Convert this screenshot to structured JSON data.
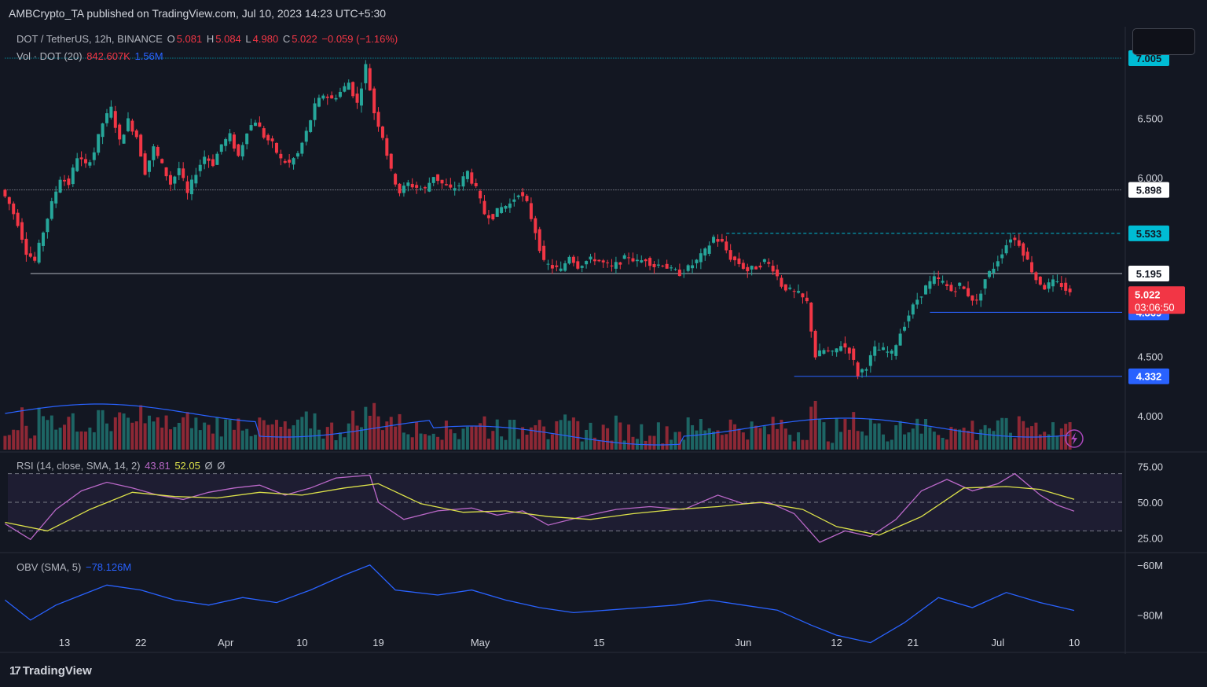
{
  "header": {
    "publisher_line": "AMBCrypto_TA published on TradingView.com, Jul 10, 2023 14:23 UTC+5:30"
  },
  "legend": {
    "symbol": "DOT / TetherUS, 12h, BINANCE",
    "o_label": "O",
    "o_value": "5.081",
    "h_label": "H",
    "h_value": "5.084",
    "l_label": "L",
    "l_value": "4.980",
    "c_label": "C",
    "c_value": "5.022",
    "change": "−0.059 (−1.16%)",
    "vol_label": "Vol · DOT (20)",
    "vol_value": "842.607K",
    "vol_ma": "1.56M",
    "rsi_label": "RSI (14, close, SMA, 14, 2)",
    "rsi_value": "43.81",
    "rsi_sma": "52.05",
    "rsi_extra1": "Ø",
    "rsi_extra2": "Ø",
    "obv_label": "OBV (SMA, 5)",
    "obv_value": "−78.126M"
  },
  "colors": {
    "bg": "#131722",
    "up": "#26a69a",
    "down": "#f23645",
    "vol_ma": "#2962ff",
    "rsi": "#ba68c8",
    "rsi_sma": "#dde24a",
    "obv": "#2962ff",
    "grid_text": "#d1d4dc"
  },
  "chart_data": {
    "type": "candlestick",
    "symbol": "DOT / TetherUS",
    "interval": "12h",
    "exchange": "BINANCE",
    "y_ticks": [
      "6.500",
      "6.000",
      "4.500",
      "4.000"
    ],
    "ylim": [
      3.8,
      7.1
    ],
    "x_ticks": [
      "13",
      "22",
      "Apr",
      "10",
      "19",
      "May",
      "15",
      "Jun",
      "12",
      "21",
      "Jul",
      "10"
    ],
    "x_tick_dates": [
      "2023-03-13",
      "2023-03-22",
      "2023-04-01",
      "2023-04-10",
      "2023-04-19",
      "2023-05-01",
      "2023-05-15",
      "2023-06-01",
      "2023-06-12",
      "2023-06-21",
      "2023-07-01",
      "2023-07-10"
    ],
    "price_labels": [
      {
        "text": "7.005",
        "value": 7.005,
        "color": "#00bcd4",
        "text_color": "#131722"
      },
      {
        "text": "5.898",
        "value": 5.898,
        "color": "#ffffff",
        "text_color": "#131722"
      },
      {
        "text": "5.533",
        "value": 5.533,
        "color": "#00bcd4",
        "text_color": "#131722"
      },
      {
        "text": "5.195",
        "value": 5.195,
        "color": "#ffffff",
        "text_color": "#131722"
      },
      {
        "text": "4.869",
        "value": 4.869,
        "color": "#2962ff",
        "text_color": "#ffffff"
      },
      {
        "text": "4.332",
        "value": 4.332,
        "color": "#2962ff",
        "text_color": "#ffffff"
      }
    ],
    "current_price": {
      "value": 5.022,
      "text": "5.022",
      "countdown": "03:06:50",
      "color": "#f23645"
    },
    "horizontal_lines": [
      {
        "value": 7.005,
        "style": "dotted",
        "color": "#00bcd4",
        "x_start_date": "2023-03-06"
      },
      {
        "value": 5.898,
        "style": "dotted",
        "color": "#b2b5be",
        "x_start_date": "2023-03-06"
      },
      {
        "value": 5.533,
        "style": "dashed",
        "color": "#00bcd4",
        "x_start_date": "2023-05-30"
      },
      {
        "value": 5.195,
        "style": "solid",
        "color": "#b2b5be",
        "x_start_date": "2023-03-09"
      },
      {
        "value": 4.869,
        "style": "solid",
        "color": "#2962ff",
        "x_start_date": "2023-06-23"
      },
      {
        "value": 4.332,
        "style": "solid",
        "color": "#2962ff",
        "x_start_date": "2023-06-07"
      }
    ],
    "price_path": [
      [
        "2023-03-06",
        5.9
      ],
      [
        "2023-03-07",
        5.78
      ],
      [
        "2023-03-08",
        5.62
      ],
      [
        "2023-03-09",
        5.38
      ],
      [
        "2023-03-10",
        5.3
      ],
      [
        "2023-03-11",
        5.55
      ],
      [
        "2023-03-12",
        5.78
      ],
      [
        "2023-03-13",
        6.0
      ],
      [
        "2023-03-14",
        5.95
      ],
      [
        "2023-03-15",
        6.18
      ],
      [
        "2023-03-16",
        6.1
      ],
      [
        "2023-03-17",
        6.22
      ],
      [
        "2023-03-18",
        6.46
      ],
      [
        "2023-03-19",
        6.58
      ],
      [
        "2023-03-20",
        6.3
      ],
      [
        "2023-03-21",
        6.48
      ],
      [
        "2023-03-22",
        6.35
      ],
      [
        "2023-03-23",
        6.05
      ],
      [
        "2023-03-24",
        6.25
      ],
      [
        "2023-03-25",
        6.1
      ],
      [
        "2023-03-26",
        5.95
      ],
      [
        "2023-03-27",
        6.08
      ],
      [
        "2023-03-28",
        5.86
      ],
      [
        "2023-03-29",
        6.05
      ],
      [
        "2023-03-30",
        6.18
      ],
      [
        "2023-03-31",
        6.12
      ],
      [
        "2023-04-01",
        6.28
      ],
      [
        "2023-04-02",
        6.35
      ],
      [
        "2023-04-03",
        6.18
      ],
      [
        "2023-04-04",
        6.4
      ],
      [
        "2023-04-05",
        6.48
      ],
      [
        "2023-04-06",
        6.35
      ],
      [
        "2023-04-07",
        6.28
      ],
      [
        "2023-04-08",
        6.15
      ],
      [
        "2023-04-09",
        6.12
      ],
      [
        "2023-04-10",
        6.2
      ],
      [
        "2023-04-11",
        6.38
      ],
      [
        "2023-04-12",
        6.6
      ],
      [
        "2023-04-13",
        6.7
      ],
      [
        "2023-04-14",
        6.66
      ],
      [
        "2023-04-15",
        6.72
      ],
      [
        "2023-04-16",
        6.8
      ],
      [
        "2023-04-17",
        6.62
      ],
      [
        "2023-04-18",
        6.94
      ],
      [
        "2023-04-19",
        6.55
      ],
      [
        "2023-04-20",
        6.35
      ],
      [
        "2023-04-21",
        6.05
      ],
      [
        "2023-04-22",
        5.88
      ],
      [
        "2023-04-23",
        5.95
      ],
      [
        "2023-04-24",
        5.92
      ],
      [
        "2023-04-25",
        5.9
      ],
      [
        "2023-04-26",
        6.02
      ],
      [
        "2023-04-27",
        5.95
      ],
      [
        "2023-04-28",
        5.9
      ],
      [
        "2023-04-29",
        5.94
      ],
      [
        "2023-04-30",
        6.05
      ],
      [
        "2023-05-01",
        5.9
      ],
      [
        "2023-05-02",
        5.7
      ],
      [
        "2023-05-03",
        5.68
      ],
      [
        "2023-05-04",
        5.75
      ],
      [
        "2023-05-05",
        5.78
      ],
      [
        "2023-05-06",
        5.88
      ],
      [
        "2023-05-07",
        5.78
      ],
      [
        "2023-05-08",
        5.55
      ],
      [
        "2023-05-09",
        5.28
      ],
      [
        "2023-05-10",
        5.25
      ],
      [
        "2023-05-11",
        5.22
      ],
      [
        "2023-05-12",
        5.35
      ],
      [
        "2023-05-13",
        5.26
      ],
      [
        "2023-05-14",
        5.3
      ],
      [
        "2023-05-15",
        5.32
      ],
      [
        "2023-05-16",
        5.28
      ],
      [
        "2023-05-17",
        5.24
      ],
      [
        "2023-05-18",
        5.3
      ],
      [
        "2023-05-19",
        5.34
      ],
      [
        "2023-05-20",
        5.29
      ],
      [
        "2023-05-21",
        5.32
      ],
      [
        "2023-05-22",
        5.26
      ],
      [
        "2023-05-23",
        5.28
      ],
      [
        "2023-05-24",
        5.22
      ],
      [
        "2023-05-25",
        5.2
      ],
      [
        "2023-05-26",
        5.24
      ],
      [
        "2023-05-27",
        5.3
      ],
      [
        "2023-05-28",
        5.38
      ],
      [
        "2023-05-29",
        5.5
      ],
      [
        "2023-05-30",
        5.45
      ],
      [
        "2023-05-31",
        5.33
      ],
      [
        "2023-06-01",
        5.28
      ],
      [
        "2023-06-02",
        5.22
      ],
      [
        "2023-06-03",
        5.25
      ],
      [
        "2023-06-04",
        5.3
      ],
      [
        "2023-06-05",
        5.24
      ],
      [
        "2023-06-06",
        5.1
      ],
      [
        "2023-06-07",
        5.05
      ],
      [
        "2023-06-08",
        5.02
      ],
      [
        "2023-06-09",
        4.95
      ],
      [
        "2023-06-10",
        4.5
      ],
      [
        "2023-06-11",
        4.55
      ],
      [
        "2023-06-12",
        4.52
      ],
      [
        "2023-06-13",
        4.6
      ],
      [
        "2023-06-14",
        4.55
      ],
      [
        "2023-06-15",
        4.35
      ],
      [
        "2023-06-16",
        4.42
      ],
      [
        "2023-06-17",
        4.56
      ],
      [
        "2023-06-18",
        4.55
      ],
      [
        "2023-06-19",
        4.52
      ],
      [
        "2023-06-20",
        4.7
      ],
      [
        "2023-06-21",
        4.85
      ],
      [
        "2023-06-22",
        4.98
      ],
      [
        "2023-06-23",
        5.08
      ],
      [
        "2023-06-24",
        5.15
      ],
      [
        "2023-06-25",
        5.12
      ],
      [
        "2023-06-26",
        5.05
      ],
      [
        "2023-06-27",
        5.1
      ],
      [
        "2023-06-28",
        5.02
      ],
      [
        "2023-06-29",
        4.95
      ],
      [
        "2023-06-30",
        5.15
      ],
      [
        "2023-07-01",
        5.25
      ],
      [
        "2023-07-02",
        5.38
      ],
      [
        "2023-07-03",
        5.5
      ],
      [
        "2023-07-04",
        5.45
      ],
      [
        "2023-07-05",
        5.3
      ],
      [
        "2023-07-06",
        5.15
      ],
      [
        "2023-07-07",
        5.08
      ],
      [
        "2023-07-08",
        5.12
      ],
      [
        "2023-07-09",
        5.1
      ],
      [
        "2023-07-10",
        5.022
      ]
    ],
    "rsi": {
      "ticks": [
        "75.00",
        "50.00",
        "25.00"
      ],
      "ylim": [
        17,
        83
      ],
      "bands": [
        70,
        50,
        30
      ],
      "points": [
        [
          "2023-03-06",
          35
        ],
        [
          "2023-03-09",
          24
        ],
        [
          "2023-03-12",
          45
        ],
        [
          "2023-03-15",
          58
        ],
        [
          "2023-03-18",
          64
        ],
        [
          "2023-03-21",
          60
        ],
        [
          "2023-03-24",
          55
        ],
        [
          "2023-03-27",
          52
        ],
        [
          "2023-03-30",
          57
        ],
        [
          "2023-04-02",
          60
        ],
        [
          "2023-04-05",
          62
        ],
        [
          "2023-04-08",
          55
        ],
        [
          "2023-04-11",
          60
        ],
        [
          "2023-04-14",
          67
        ],
        [
          "2023-04-18",
          69
        ],
        [
          "2023-04-19",
          50
        ],
        [
          "2023-04-22",
          38
        ],
        [
          "2023-04-26",
          44
        ],
        [
          "2023-04-30",
          46
        ],
        [
          "2023-05-03",
          41
        ],
        [
          "2023-05-06",
          44
        ],
        [
          "2023-05-09",
          34
        ],
        [
          "2023-05-13",
          40
        ],
        [
          "2023-05-17",
          45
        ],
        [
          "2023-05-21",
          47
        ],
        [
          "2023-05-25",
          45
        ],
        [
          "2023-05-29",
          55
        ],
        [
          "2023-06-01",
          49
        ],
        [
          "2023-06-04",
          50
        ],
        [
          "2023-06-07",
          42
        ],
        [
          "2023-06-10",
          22
        ],
        [
          "2023-06-13",
          30
        ],
        [
          "2023-06-16",
          26
        ],
        [
          "2023-06-19",
          38
        ],
        [
          "2023-06-22",
          58
        ],
        [
          "2023-06-25",
          66
        ],
        [
          "2023-06-28",
          58
        ],
        [
          "2023-07-01",
          63
        ],
        [
          "2023-07-03",
          70
        ],
        [
          "2023-07-06",
          55
        ],
        [
          "2023-07-08",
          48
        ],
        [
          "2023-07-10",
          43.81
        ]
      ],
      "sma_points": [
        [
          "2023-03-06",
          36
        ],
        [
          "2023-03-11",
          30
        ],
        [
          "2023-03-16",
          45
        ],
        [
          "2023-03-21",
          57
        ],
        [
          "2023-03-26",
          54
        ],
        [
          "2023-03-31",
          53
        ],
        [
          "2023-04-05",
          57
        ],
        [
          "2023-04-10",
          55
        ],
        [
          "2023-04-15",
          60
        ],
        [
          "2023-04-19",
          63
        ],
        [
          "2023-04-24",
          49
        ],
        [
          "2023-04-29",
          43
        ],
        [
          "2023-05-04",
          44
        ],
        [
          "2023-05-09",
          40
        ],
        [
          "2023-05-14",
          38
        ],
        [
          "2023-05-19",
          42
        ],
        [
          "2023-05-24",
          45
        ],
        [
          "2023-05-29",
          47
        ],
        [
          "2023-06-03",
          50
        ],
        [
          "2023-06-08",
          45
        ],
        [
          "2023-06-12",
          33
        ],
        [
          "2023-06-17",
          27
        ],
        [
          "2023-06-22",
          40
        ],
        [
          "2023-06-27",
          60
        ],
        [
          "2023-07-02",
          61
        ],
        [
          "2023-07-06",
          59
        ],
        [
          "2023-07-10",
          52.05
        ]
      ]
    },
    "obv": {
      "ticks": [
        "−60M",
        "−80M"
      ],
      "ylim": [
        -93,
        -56
      ],
      "points": [
        [
          "2023-03-06",
          -74
        ],
        [
          "2023-03-09",
          -82
        ],
        [
          "2023-03-12",
          -76
        ],
        [
          "2023-03-15",
          -72
        ],
        [
          "2023-03-18",
          -68
        ],
        [
          "2023-03-22",
          -70
        ],
        [
          "2023-03-26",
          -74
        ],
        [
          "2023-03-30",
          -76
        ],
        [
          "2023-04-03",
          -73
        ],
        [
          "2023-04-07",
          -75
        ],
        [
          "2023-04-11",
          -70
        ],
        [
          "2023-04-15",
          -64
        ],
        [
          "2023-04-18",
          -60
        ],
        [
          "2023-04-21",
          -70
        ],
        [
          "2023-04-26",
          -72
        ],
        [
          "2023-04-30",
          -70
        ],
        [
          "2023-05-04",
          -74
        ],
        [
          "2023-05-08",
          -77
        ],
        [
          "2023-05-12",
          -79
        ],
        [
          "2023-05-16",
          -78
        ],
        [
          "2023-05-20",
          -77
        ],
        [
          "2023-05-24",
          -76
        ],
        [
          "2023-05-28",
          -74
        ],
        [
          "2023-06-01",
          -76
        ],
        [
          "2023-06-05",
          -78
        ],
        [
          "2023-06-09",
          -84
        ],
        [
          "2023-06-12",
          -88
        ],
        [
          "2023-06-16",
          -91
        ],
        [
          "2023-06-20",
          -83
        ],
        [
          "2023-06-24",
          -73
        ],
        [
          "2023-06-28",
          -77
        ],
        [
          "2023-07-02",
          -71
        ],
        [
          "2023-07-06",
          -75
        ],
        [
          "2023-07-10",
          -78.126
        ]
      ]
    },
    "volume_ma_level": 1.56
  }
}
